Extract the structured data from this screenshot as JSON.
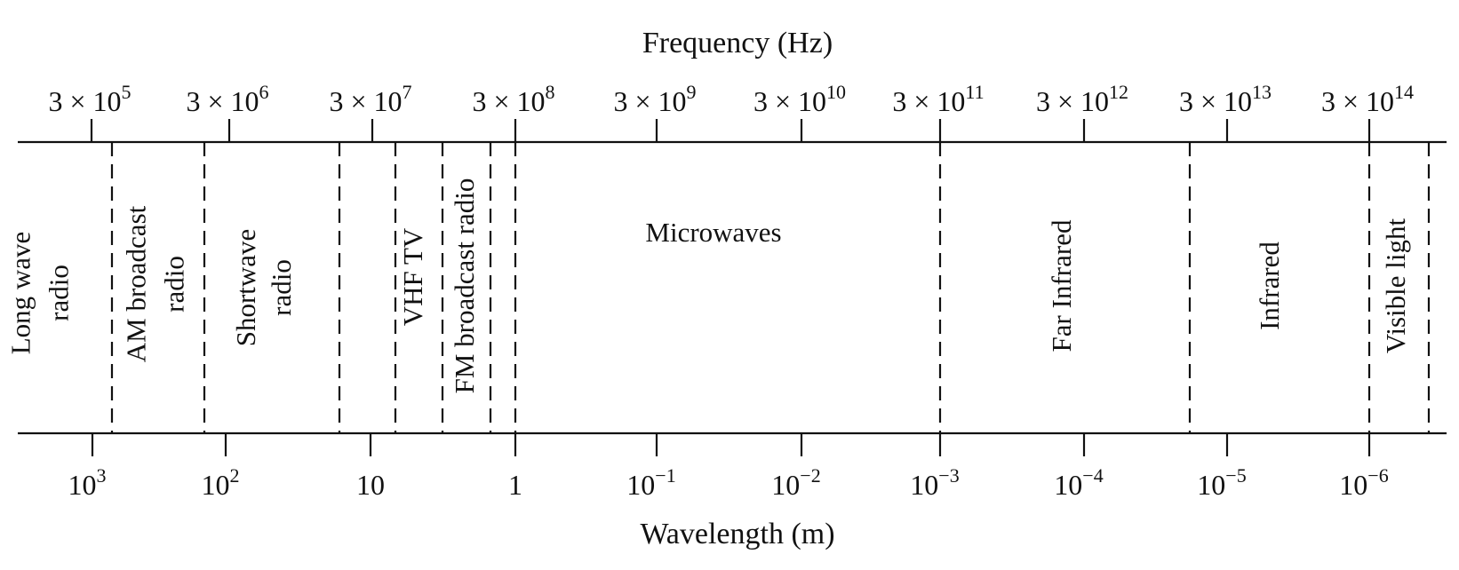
{
  "frequency_axis": {
    "title": "Frequency (Hz)",
    "ticks": [
      {
        "base": "3 × 10",
        "exp": "5"
      },
      {
        "base": "3 × 10",
        "exp": "6"
      },
      {
        "base": "3 × 10",
        "exp": "7"
      },
      {
        "base": "3 × 10",
        "exp": "8"
      },
      {
        "base": "3 × 10",
        "exp": "9"
      },
      {
        "base": "3 × 10",
        "exp": "10"
      },
      {
        "base": "3 × 10",
        "exp": "11"
      },
      {
        "base": "3 × 10",
        "exp": "12"
      },
      {
        "base": "3 × 10",
        "exp": "13"
      },
      {
        "base": "3 × 10",
        "exp": "14"
      }
    ]
  },
  "wavelength_axis": {
    "title": "Wavelength (m)",
    "ticks": [
      {
        "base": "10",
        "exp": "3"
      },
      {
        "base": "10",
        "exp": "2"
      },
      {
        "base": "10",
        "exp": ""
      },
      {
        "base": "1",
        "exp": ""
      },
      {
        "base": "10",
        "exp": "−1"
      },
      {
        "base": "10",
        "exp": "−2"
      },
      {
        "base": "10",
        "exp": "−3"
      },
      {
        "base": "10",
        "exp": "−4"
      },
      {
        "base": "10",
        "exp": "−5"
      },
      {
        "base": "10",
        "exp": "−6"
      }
    ]
  },
  "bands": [
    {
      "lines": [
        "Long wave",
        "radio"
      ]
    },
    {
      "lines": [
        "AM broadcast",
        "radio"
      ]
    },
    {
      "lines": [
        "Shortwave",
        "radio"
      ]
    },
    {
      "lines": [
        "VHF TV"
      ]
    },
    {
      "lines": [
        "FM broadcast radio"
      ]
    },
    {
      "lines": [
        "Microwaves"
      ]
    },
    {
      "lines": [
        "Far Infrared"
      ]
    },
    {
      "lines": [
        "Infrared"
      ]
    },
    {
      "lines": [
        "Visible light"
      ]
    }
  ]
}
